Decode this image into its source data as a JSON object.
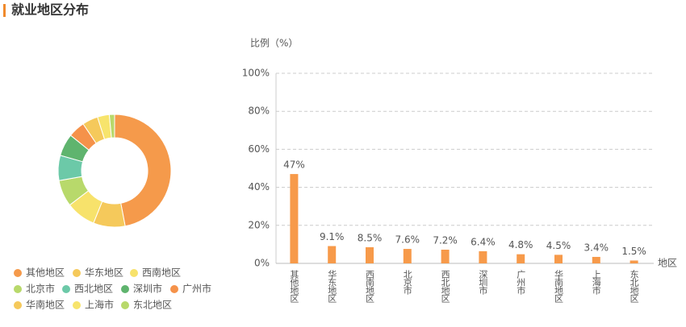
{
  "header": {
    "title": "就业地区分布"
  },
  "chart_data": [
    {
      "type": "donut",
      "categories": [
        "其他地区",
        "华东地区",
        "西南地区",
        "北京市",
        "西北地区",
        "深圳市",
        "广州市",
        "华南地区",
        "上海市",
        "东北地区"
      ],
      "values": [
        47,
        9.1,
        8.5,
        7.6,
        7.2,
        6.4,
        4.8,
        4.5,
        3.4,
        1.5
      ],
      "colors": [
        "#f59a4b",
        "#f5c95b",
        "#f7e26b",
        "#b8d96b",
        "#6cc9a8",
        "#5fb46e",
        "#f5924a",
        "#f5c95b",
        "#f7e46c",
        "#b8d96b"
      ]
    },
    {
      "type": "bar",
      "y_label": "比例（%）",
      "x_label": "地区",
      "categories": [
        "其他地区",
        "华东地区",
        "西南地区",
        "北京市",
        "西北地区",
        "深圳市",
        "广州市",
        "华南地区",
        "上海市",
        "东北地区"
      ],
      "values": [
        47,
        9.1,
        8.5,
        7.6,
        7.2,
        6.4,
        4.8,
        4.5,
        3.4,
        1.5
      ],
      "value_labels": [
        "47%",
        "9.1%",
        "8.5%",
        "7.6%",
        "7.2%",
        "6.4%",
        "4.8%",
        "4.5%",
        "3.4%",
        "1.5%"
      ],
      "color": "#f79a4a",
      "ylim": [
        0,
        100
      ],
      "yticks": [
        {
          "value": 0,
          "label": "0%"
        },
        {
          "value": 20,
          "label": "20%"
        },
        {
          "value": 40,
          "label": "40%"
        },
        {
          "value": 60,
          "label": "60%"
        },
        {
          "value": 80,
          "label": "80%"
        },
        {
          "value": 100,
          "label": "100%"
        }
      ],
      "grid": true
    }
  ]
}
